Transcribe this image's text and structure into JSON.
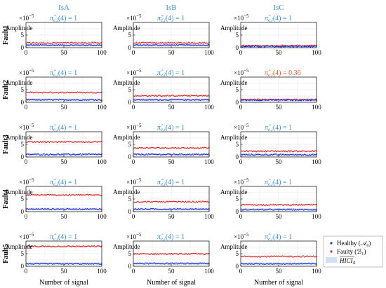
{
  "figure": {
    "column_titles": [
      "IsA",
      "IsB",
      "IsC"
    ],
    "row_labels": [
      "Fault1",
      "Fault2",
      "Fault3",
      "Fault4",
      "Fault5"
    ],
    "ylabel": "Amplitude",
    "xlabel": "Number of signal",
    "scale_label": "×10",
    "scale_exponent": "−5",
    "pi_symbol": "π̂",
    "pi_subscript": "e,i",
    "pi_arg": "(4) = ",
    "title_color_normal": "#3a8fd1",
    "title_color_alert": "#e2572b",
    "healthy_color": "#1f2bd6",
    "faulty_color": "#e02424",
    "hici_color": "#cfe2f5",
    "legend": {
      "healthy": "Healthy (𝒜₀)",
      "faulty": "Faulty (ℬ₁)",
      "hici": "HICI",
      "hici_sub": "4"
    }
  },
  "chart_data": {
    "type": "scatter",
    "xlim": [
      0,
      100
    ],
    "ylim": [
      0,
      10
    ],
    "xticks": [
      0,
      50,
      100
    ],
    "yticks": [
      0,
      5
    ],
    "grid": true,
    "legend_position": "bottom-right",
    "subplots": [
      {
        "row": 0,
        "col": 0,
        "pi_value": "1",
        "alert": false,
        "healthy": 1.0,
        "faulty": 1.9
      },
      {
        "row": 0,
        "col": 1,
        "pi_value": "1",
        "alert": false,
        "healthy": 1.0,
        "faulty": 1.9
      },
      {
        "row": 0,
        "col": 2,
        "pi_value": "1",
        "alert": false,
        "healthy": 0.5,
        "faulty": 0.8
      },
      {
        "row": 1,
        "col": 0,
        "pi_value": "1",
        "alert": false,
        "healthy": 1.0,
        "faulty": 3.9
      },
      {
        "row": 1,
        "col": 1,
        "pi_value": "1",
        "alert": false,
        "healthy": 1.0,
        "faulty": 2.6
      },
      {
        "row": 1,
        "col": 2,
        "pi_value": "0.36",
        "alert": true,
        "healthy": 0.9,
        "faulty": 1.1
      },
      {
        "row": 2,
        "col": 0,
        "pi_value": "1",
        "alert": false,
        "healthy": 1.0,
        "faulty": 6.0
      },
      {
        "row": 2,
        "col": 1,
        "pi_value": "1",
        "alert": false,
        "healthy": 1.0,
        "faulty": 3.6
      },
      {
        "row": 2,
        "col": 2,
        "pi_value": "1",
        "alert": false,
        "healthy": 0.9,
        "faulty": 2.3
      },
      {
        "row": 3,
        "col": 0,
        "pi_value": "1",
        "alert": false,
        "healthy": 1.0,
        "faulty": 6.6
      },
      {
        "row": 3,
        "col": 1,
        "pi_value": "1",
        "alert": false,
        "healthy": 1.0,
        "faulty": 3.9
      },
      {
        "row": 3,
        "col": 2,
        "pi_value": "1",
        "alert": false,
        "healthy": 0.8,
        "faulty": 2.7
      },
      {
        "row": 4,
        "col": 0,
        "pi_value": "1",
        "alert": false,
        "healthy": 1.0,
        "faulty": 7.9
      },
      {
        "row": 4,
        "col": 1,
        "pi_value": "1",
        "alert": false,
        "healthy": 1.1,
        "faulty": 4.9
      },
      {
        "row": 4,
        "col": 2,
        "pi_value": "1",
        "alert": false,
        "healthy": 1.0,
        "faulty": 3.9
      }
    ]
  }
}
